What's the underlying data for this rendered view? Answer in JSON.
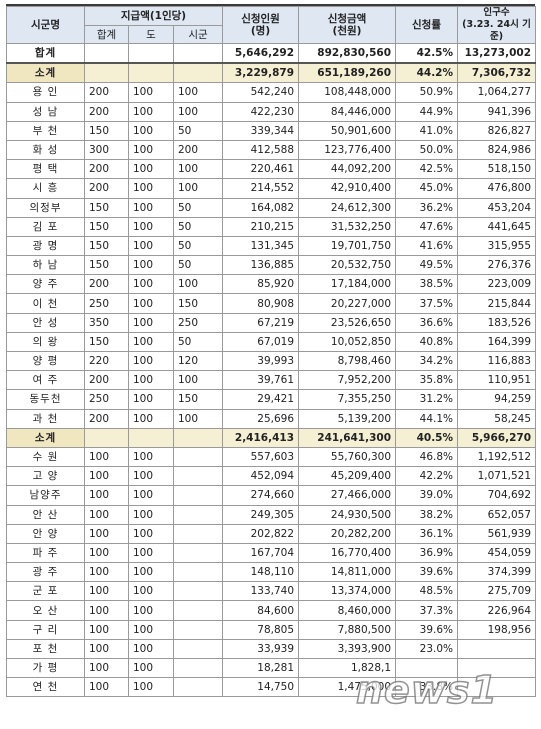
{
  "headers": {
    "region": "시군명",
    "payment": "지급액(1인당)",
    "payment_sub": [
      "합계",
      "도",
      "시군"
    ],
    "applicants": "신청인원\n(명)",
    "amount": "신청금액\n(천원)",
    "rate": "신청률",
    "population": "인구수\n(3.23. 24시 기준)"
  },
  "total": {
    "name": "합계",
    "applicants": "5,646,292",
    "amount": "892,830,560",
    "rate": "42.5%",
    "population": "13,273,002"
  },
  "group1": {
    "subtotal": {
      "name": "소계",
      "applicants": "3,229,879",
      "amount": "651,189,260",
      "rate": "44.2%",
      "population": "7,306,732"
    },
    "rows": [
      {
        "name": "용 인",
        "sum": "200",
        "do": "100",
        "sigun": "100",
        "applicants": "542,240",
        "amount": "108,448,000",
        "rate": "50.9%",
        "population": "1,064,277"
      },
      {
        "name": "성 남",
        "sum": "200",
        "do": "100",
        "sigun": "100",
        "applicants": "422,230",
        "amount": "84,446,000",
        "rate": "44.9%",
        "population": "941,396"
      },
      {
        "name": "부 천",
        "sum": "150",
        "do": "100",
        "sigun": "50",
        "applicants": "339,344",
        "amount": "50,901,600",
        "rate": "41.0%",
        "population": "826,827"
      },
      {
        "name": "화 성",
        "sum": "300",
        "do": "100",
        "sigun": "200",
        "applicants": "412,588",
        "amount": "123,776,400",
        "rate": "50.0%",
        "population": "824,986"
      },
      {
        "name": "평 택",
        "sum": "200",
        "do": "100",
        "sigun": "100",
        "applicants": "220,461",
        "amount": "44,092,200",
        "rate": "42.5%",
        "population": "518,150"
      },
      {
        "name": "시 흥",
        "sum": "200",
        "do": "100",
        "sigun": "100",
        "applicants": "214,552",
        "amount": "42,910,400",
        "rate": "45.0%",
        "population": "476,800"
      },
      {
        "name": "의정부",
        "sum": "150",
        "do": "100",
        "sigun": "50",
        "applicants": "164,082",
        "amount": "24,612,300",
        "rate": "36.2%",
        "population": "453,204"
      },
      {
        "name": "김 포",
        "sum": "150",
        "do": "100",
        "sigun": "50",
        "applicants": "210,215",
        "amount": "31,532,250",
        "rate": "47.6%",
        "population": "441,645"
      },
      {
        "name": "광 명",
        "sum": "150",
        "do": "100",
        "sigun": "50",
        "applicants": "131,345",
        "amount": "19,701,750",
        "rate": "41.6%",
        "population": "315,955"
      },
      {
        "name": "하 남",
        "sum": "150",
        "do": "100",
        "sigun": "50",
        "applicants": "136,885",
        "amount": "20,532,750",
        "rate": "49.5%",
        "population": "276,376"
      },
      {
        "name": "양 주",
        "sum": "200",
        "do": "100",
        "sigun": "100",
        "applicants": "85,920",
        "amount": "17,184,000",
        "rate": "38.5%",
        "population": "223,009"
      },
      {
        "name": "이 천",
        "sum": "250",
        "do": "100",
        "sigun": "150",
        "applicants": "80,908",
        "amount": "20,227,000",
        "rate": "37.5%",
        "population": "215,844"
      },
      {
        "name": "안 성",
        "sum": "350",
        "do": "100",
        "sigun": "250",
        "applicants": "67,219",
        "amount": "23,526,650",
        "rate": "36.6%",
        "population": "183,526"
      },
      {
        "name": "의 왕",
        "sum": "150",
        "do": "100",
        "sigun": "50",
        "applicants": "67,019",
        "amount": "10,052,850",
        "rate": "40.8%",
        "population": "164,399"
      },
      {
        "name": "양 평",
        "sum": "220",
        "do": "100",
        "sigun": "120",
        "applicants": "39,993",
        "amount": "8,798,460",
        "rate": "34.2%",
        "population": "116,883"
      },
      {
        "name": "여 주",
        "sum": "200",
        "do": "100",
        "sigun": "100",
        "applicants": "39,761",
        "amount": "7,952,200",
        "rate": "35.8%",
        "population": "110,951"
      },
      {
        "name": "동두천",
        "sum": "250",
        "do": "100",
        "sigun": "150",
        "applicants": "29,421",
        "amount": "7,355,250",
        "rate": "31.2%",
        "population": "94,259"
      },
      {
        "name": "과 천",
        "sum": "200",
        "do": "100",
        "sigun": "100",
        "applicants": "25,696",
        "amount": "5,139,200",
        "rate": "44.1%",
        "population": "58,245"
      }
    ]
  },
  "group2": {
    "subtotal": {
      "name": "소계",
      "applicants": "2,416,413",
      "amount": "241,641,300",
      "rate": "40.5%",
      "population": "5,966,270"
    },
    "rows": [
      {
        "name": "수 원",
        "sum": "100",
        "do": "100",
        "sigun": "",
        "applicants": "557,603",
        "amount": "55,760,300",
        "rate": "46.8%",
        "population": "1,192,512"
      },
      {
        "name": "고 양",
        "sum": "100",
        "do": "100",
        "sigun": "",
        "applicants": "452,094",
        "amount": "45,209,400",
        "rate": "42.2%",
        "population": "1,071,521"
      },
      {
        "name": "남양주",
        "sum": "100",
        "do": "100",
        "sigun": "",
        "applicants": "274,660",
        "amount": "27,466,000",
        "rate": "39.0%",
        "population": "704,692"
      },
      {
        "name": "안 산",
        "sum": "100",
        "do": "100",
        "sigun": "",
        "applicants": "249,305",
        "amount": "24,930,500",
        "rate": "38.2%",
        "population": "652,057"
      },
      {
        "name": "안 양",
        "sum": "100",
        "do": "100",
        "sigun": "",
        "applicants": "202,822",
        "amount": "20,282,200",
        "rate": "36.1%",
        "population": "561,939"
      },
      {
        "name": "파 주",
        "sum": "100",
        "do": "100",
        "sigun": "",
        "applicants": "167,704",
        "amount": "16,770,400",
        "rate": "36.9%",
        "population": "454,059"
      },
      {
        "name": "광 주",
        "sum": "100",
        "do": "100",
        "sigun": "",
        "applicants": "148,110",
        "amount": "14,811,000",
        "rate": "39.6%",
        "population": "374,399"
      },
      {
        "name": "군 포",
        "sum": "100",
        "do": "100",
        "sigun": "",
        "applicants": "133,740",
        "amount": "13,374,000",
        "rate": "48.5%",
        "population": "275,709"
      },
      {
        "name": "오 산",
        "sum": "100",
        "do": "100",
        "sigun": "",
        "applicants": "84,600",
        "amount": "8,460,000",
        "rate": "37.3%",
        "population": "226,964"
      },
      {
        "name": "구 리",
        "sum": "100",
        "do": "100",
        "sigun": "",
        "applicants": "78,805",
        "amount": "7,880,500",
        "rate": "39.6%",
        "population": "198,956"
      },
      {
        "name": "포 천",
        "sum": "100",
        "do": "100",
        "sigun": "",
        "applicants": "33,939",
        "amount": "3,393,900",
        "rate": "23.0%",
        "population": ""
      },
      {
        "name": "가 평",
        "sum": "100",
        "do": "100",
        "sigun": "",
        "applicants": "18,281",
        "amount": "1,828,1",
        "rate": "",
        "population": ""
      },
      {
        "name": "연 천",
        "sum": "100",
        "do": "100",
        "sigun": "",
        "applicants": "14,750",
        "amount": "1,475,000",
        "rate": "33.8%",
        "population": ""
      }
    ]
  },
  "watermark": "news1"
}
